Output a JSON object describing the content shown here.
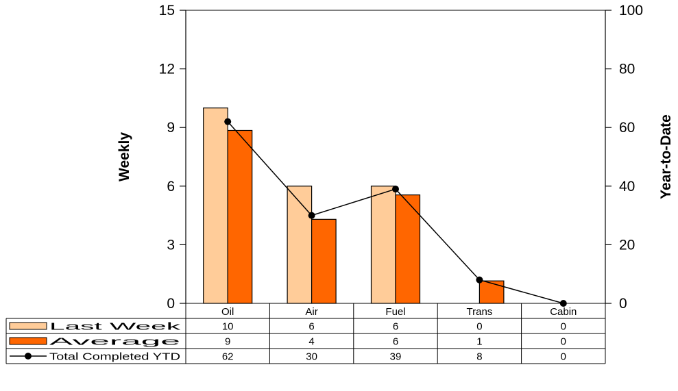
{
  "chart_data": {
    "type": "bar",
    "categories": [
      "Oil",
      "Air",
      "Fuel",
      "Trans",
      "Cabin"
    ],
    "series": [
      {
        "name": "Last Week",
        "type": "bar",
        "axis": "left",
        "color": "#FFCC99",
        "values": [
          10,
          6,
          6,
          0,
          0
        ],
        "table_values": [
          "10",
          "6",
          "6",
          "0",
          "0"
        ]
      },
      {
        "name": "Average",
        "type": "bar",
        "axis": "left",
        "color": "#FF6600",
        "values": [
          8.85,
          4.3,
          5.55,
          1.15,
          0
        ],
        "table_values": [
          "9",
          "4",
          "6",
          "1",
          "0"
        ]
      },
      {
        "name": "Total Completed YTD",
        "type": "line",
        "axis": "right",
        "color": "#000000",
        "values": [
          62,
          30,
          39,
          8,
          0
        ],
        "table_values": [
          "62",
          "30",
          "39",
          "8",
          "0"
        ]
      }
    ],
    "left_axis": {
      "title": "Weekly",
      "min": 0,
      "max": 15,
      "ticks": [
        "0",
        "3",
        "6",
        "9",
        "12",
        "15"
      ]
    },
    "right_axis": {
      "title": "Year-to-Date",
      "min": 0,
      "max": 100,
      "ticks": [
        "0",
        "20",
        "40",
        "60",
        "80",
        "100"
      ]
    },
    "data_table": true,
    "grid": false
  }
}
